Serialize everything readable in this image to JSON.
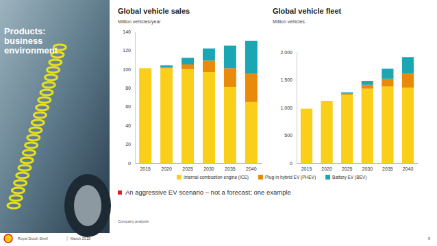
{
  "chart_data": [
    {
      "type": "bar",
      "title": "Global vehicle sales",
      "subtitle": "Million vehicles/year",
      "categories": [
        "2015",
        "2020",
        "2025",
        "2030",
        "2035",
        "2040"
      ],
      "series": [
        {
          "name": "Internal combustion engine (ICE)",
          "color": "#f9cf1a",
          "values": [
            101,
            101,
            100,
            97,
            81,
            65
          ]
        },
        {
          "name": "Plug-in hybrid EV (PHEV)",
          "color": "#ea8a0b",
          "values": [
            0,
            1,
            5,
            12,
            20,
            30
          ]
        },
        {
          "name": "Battery EV (BEV)",
          "color": "#1ba6b4",
          "values": [
            0,
            2,
            7,
            13,
            24,
            35
          ]
        }
      ],
      "ylim": [
        0,
        140
      ],
      "yticks": [
        0,
        20,
        40,
        60,
        80,
        100,
        120,
        140
      ],
      "stacked": true,
      "grid": false,
      "legend": "bottom"
    },
    {
      "type": "bar",
      "title": "Global vehicle fleet",
      "subtitle": "Million vehicles",
      "categories": [
        "2015",
        "2020",
        "2025",
        "2030",
        "2035",
        "2040"
      ],
      "series": [
        {
          "color": "#f9cf1a",
          "values": [
            980,
            1100,
            1230,
            1340,
            1380,
            1360
          ]
        },
        {
          "color": "#ea8a0b",
          "values": [
            0,
            5,
            20,
            70,
            140,
            250
          ]
        },
        {
          "color": "#1ba6b4",
          "values": [
            0,
            7,
            25,
            70,
            180,
            300
          ]
        }
      ],
      "ylim": [
        0,
        2000
      ],
      "yticks": [
        0,
        500,
        {
          "value": 1000,
          "label": "1.000"
        },
        {
          "value": 1500,
          "label": "1.500"
        },
        {
          "value": 2000,
          "label": "2.000"
        }
      ],
      "stacked": true,
      "grid": false
    }
  ],
  "page": {
    "heading": [
      "Products:",
      "business",
      "environment"
    ],
    "note": "An aggressive EV scenario – not a forecast; one example",
    "source": "Company analysis",
    "footer": "Royal Dutch Shell",
    "date": "March 2018",
    "page_number": 9
  }
}
